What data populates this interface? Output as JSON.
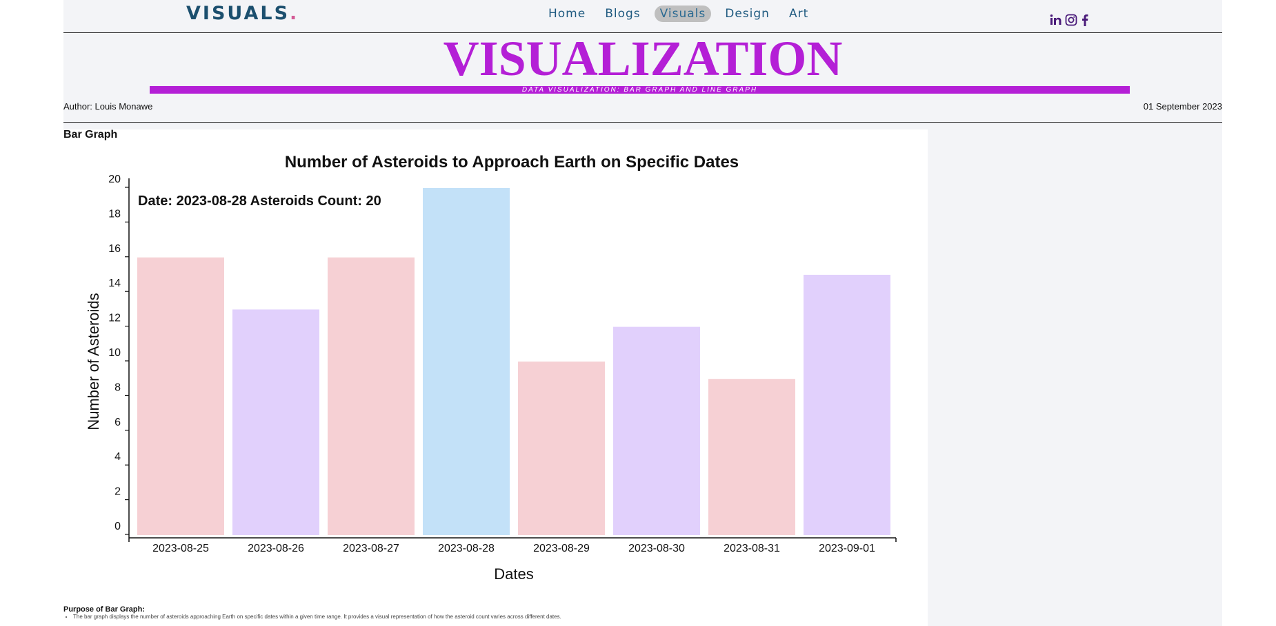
{
  "header": {
    "logo_text": "VISUALS",
    "logo_dot": ".",
    "nav": [
      "Home",
      "Blogs",
      "Visuals",
      "Design",
      "Art"
    ],
    "active_nav": "Visuals",
    "social_icons": [
      "linkedin-icon",
      "instagram-icon",
      "facebook-icon"
    ]
  },
  "hero": {
    "title": "VISUALIZATION",
    "subtitle": "DATA VISUALIZATION: BAR GRAPH AND LINE GRAPH"
  },
  "meta": {
    "author": "Author: Louis Monawe",
    "date": "01 September 2023"
  },
  "section": {
    "title": "Bar Graph"
  },
  "chart_data": {
    "type": "bar",
    "title": "Number of Asteroids to Approach Earth on Specific Dates",
    "xlabel": "Dates",
    "ylabel": "Number of Asteroids",
    "categories": [
      "2023-08-25",
      "2023-08-26",
      "2023-08-27",
      "2023-08-28",
      "2023-08-29",
      "2023-08-30",
      "2023-08-31",
      "2023-09-01"
    ],
    "values": [
      16,
      13,
      16,
      20,
      10,
      12,
      9,
      15
    ],
    "colors": [
      "#f6d0d4",
      "#e1d0fc",
      "#f6d0d4",
      "#c3e1f8",
      "#f6d0d4",
      "#e1d0fc",
      "#f6d0d4",
      "#e1d0fc"
    ],
    "ylim": [
      0,
      20
    ],
    "yticks": [
      0,
      2,
      4,
      6,
      8,
      10,
      12,
      14,
      16,
      18,
      20
    ],
    "tooltip": "Date: 2023-08-28 Asteroids Count: 20",
    "grid": false
  },
  "purpose": {
    "title": "Purpose of Bar Graph:",
    "items": [
      "The bar graph displays the number of asteroids approaching Earth on specific dates within a given time range. It provides a visual representation of how the asteroid count varies across different dates."
    ]
  }
}
